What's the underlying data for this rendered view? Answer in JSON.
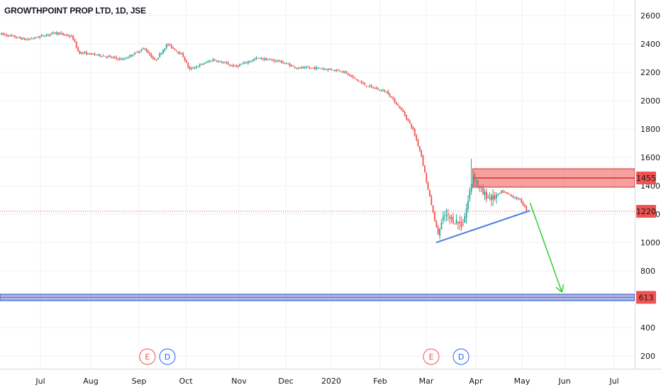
{
  "header": {
    "title": "GROWTHPOINT PROP LTD, 1D, JSE"
  },
  "chart_data": {
    "type": "candlestick",
    "title": "GROWTHPOINT PROP LTD, 1D, JSE",
    "ylim": [
      100,
      2700
    ],
    "y_ticks": [
      200,
      400,
      600,
      800,
      1000,
      1200,
      1400,
      1600,
      1800,
      2000,
      2200,
      2400,
      2600
    ],
    "x_ticks": [
      "Jul",
      "Aug",
      "Sep",
      "Oct",
      "Nov",
      "Dec",
      "2020",
      "Feb",
      "Mar",
      "Apr",
      "May",
      "Jun",
      "Jul"
    ],
    "last_price": 1220,
    "price_path": [
      [
        "2019-06-03",
        2410
      ],
      [
        "2019-06-20",
        2470
      ],
      [
        "2019-07-05",
        2430
      ],
      [
        "2019-07-22",
        2480
      ],
      [
        "2019-08-01",
        2450
      ],
      [
        "2019-08-05",
        2340
      ],
      [
        "2019-08-19",
        2320
      ],
      [
        "2019-09-02",
        2290
      ],
      [
        "2019-09-16",
        2370
      ],
      [
        "2019-09-23",
        2280
      ],
      [
        "2019-10-01",
        2400
      ],
      [
        "2019-10-10",
        2320
      ],
      [
        "2019-10-14",
        2220
      ],
      [
        "2019-10-28",
        2290
      ],
      [
        "2019-11-11",
        2240
      ],
      [
        "2019-11-25",
        2300
      ],
      [
        "2019-12-09",
        2280
      ],
      [
        "2019-12-23",
        2230
      ],
      [
        "2020-01-06",
        2230
      ],
      [
        "2020-01-20",
        2210
      ],
      [
        "2020-02-03",
        2110
      ],
      [
        "2020-02-17",
        2060
      ],
      [
        "2020-02-27",
        1920
      ],
      [
        "2020-03-04",
        1800
      ],
      [
        "2020-03-09",
        1620
      ],
      [
        "2020-03-13",
        1380
      ],
      [
        "2020-03-19",
        1060
      ],
      [
        "2020-03-23",
        1190
      ],
      [
        "2020-03-30",
        1150
      ],
      [
        "2020-04-03",
        1120
      ],
      [
        "2020-04-07",
        1300
      ],
      [
        "2020-04-10",
        1480
      ],
      [
        "2020-04-17",
        1340
      ],
      [
        "2020-04-24",
        1310
      ],
      [
        "2020-04-30",
        1360
      ],
      [
        "2020-05-06",
        1330
      ],
      [
        "2020-05-13",
        1300
      ],
      [
        "2020-05-18",
        1220
      ]
    ],
    "resistance_zone": {
      "low": 1390,
      "high": 1520,
      "label": "1455",
      "start": "2020-04-10"
    },
    "support_zone": {
      "low": 590,
      "high": 635,
      "label": "613"
    },
    "trendline": {
      "from": [
        "2020-03-18",
        1000
      ],
      "to": [
        "2020-05-20",
        1225
      ]
    },
    "projection_arrow": {
      "from": [
        "2020-05-20",
        1280
      ],
      "to": [
        "2020-06-10",
        650
      ]
    },
    "events": [
      {
        "label": "E",
        "date": "2019-09-18",
        "color": "#ef5350"
      },
      {
        "label": "D",
        "date": "2019-10-01",
        "color": "#2962ff"
      },
      {
        "label": "E",
        "date": "2020-03-15",
        "color": "#ef5350"
      },
      {
        "label": "D",
        "date": "2020-04-02",
        "color": "#2962ff"
      }
    ],
    "colors": {
      "up": "#26a69a",
      "down": "#ef5350",
      "trendline": "#4c7fe0",
      "arrow": "#33cc33",
      "support_fill": "#5b7fe0",
      "resistance_fill": "#ef5350"
    }
  }
}
